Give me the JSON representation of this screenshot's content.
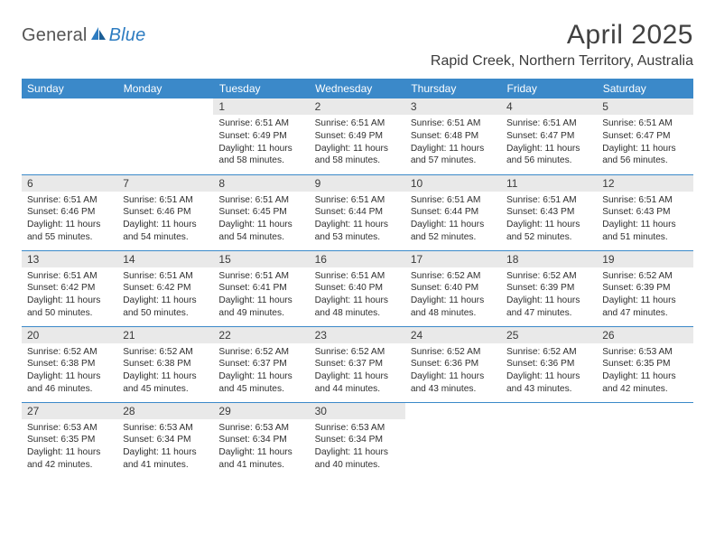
{
  "brand": {
    "part1": "General",
    "part2": "Blue"
  },
  "title": "April 2025",
  "location": "Rapid Creek, Northern Territory, Australia",
  "colors": {
    "header_bg": "#3b89c9",
    "header_text": "#ffffff",
    "daynum_band": "#e9e9e9",
    "rule": "#3b89c9",
    "text": "#333333"
  },
  "day_headers": [
    "Sunday",
    "Monday",
    "Tuesday",
    "Wednesday",
    "Thursday",
    "Friday",
    "Saturday"
  ],
  "weeks": [
    [
      {
        "empty": true
      },
      {
        "empty": true
      },
      {
        "n": "1",
        "sunrise": "6:51 AM",
        "sunset": "6:49 PM",
        "daylight": "11 hours and 58 minutes."
      },
      {
        "n": "2",
        "sunrise": "6:51 AM",
        "sunset": "6:49 PM",
        "daylight": "11 hours and 58 minutes."
      },
      {
        "n": "3",
        "sunrise": "6:51 AM",
        "sunset": "6:48 PM",
        "daylight": "11 hours and 57 minutes."
      },
      {
        "n": "4",
        "sunrise": "6:51 AM",
        "sunset": "6:47 PM",
        "daylight": "11 hours and 56 minutes."
      },
      {
        "n": "5",
        "sunrise": "6:51 AM",
        "sunset": "6:47 PM",
        "daylight": "11 hours and 56 minutes."
      }
    ],
    [
      {
        "n": "6",
        "sunrise": "6:51 AM",
        "sunset": "6:46 PM",
        "daylight": "11 hours and 55 minutes."
      },
      {
        "n": "7",
        "sunrise": "6:51 AM",
        "sunset": "6:46 PM",
        "daylight": "11 hours and 54 minutes."
      },
      {
        "n": "8",
        "sunrise": "6:51 AM",
        "sunset": "6:45 PM",
        "daylight": "11 hours and 54 minutes."
      },
      {
        "n": "9",
        "sunrise": "6:51 AM",
        "sunset": "6:44 PM",
        "daylight": "11 hours and 53 minutes."
      },
      {
        "n": "10",
        "sunrise": "6:51 AM",
        "sunset": "6:44 PM",
        "daylight": "11 hours and 52 minutes."
      },
      {
        "n": "11",
        "sunrise": "6:51 AM",
        "sunset": "6:43 PM",
        "daylight": "11 hours and 52 minutes."
      },
      {
        "n": "12",
        "sunrise": "6:51 AM",
        "sunset": "6:43 PM",
        "daylight": "11 hours and 51 minutes."
      }
    ],
    [
      {
        "n": "13",
        "sunrise": "6:51 AM",
        "sunset": "6:42 PM",
        "daylight": "11 hours and 50 minutes."
      },
      {
        "n": "14",
        "sunrise": "6:51 AM",
        "sunset": "6:42 PM",
        "daylight": "11 hours and 50 minutes."
      },
      {
        "n": "15",
        "sunrise": "6:51 AM",
        "sunset": "6:41 PM",
        "daylight": "11 hours and 49 minutes."
      },
      {
        "n": "16",
        "sunrise": "6:51 AM",
        "sunset": "6:40 PM",
        "daylight": "11 hours and 48 minutes."
      },
      {
        "n": "17",
        "sunrise": "6:52 AM",
        "sunset": "6:40 PM",
        "daylight": "11 hours and 48 minutes."
      },
      {
        "n": "18",
        "sunrise": "6:52 AM",
        "sunset": "6:39 PM",
        "daylight": "11 hours and 47 minutes."
      },
      {
        "n": "19",
        "sunrise": "6:52 AM",
        "sunset": "6:39 PM",
        "daylight": "11 hours and 47 minutes."
      }
    ],
    [
      {
        "n": "20",
        "sunrise": "6:52 AM",
        "sunset": "6:38 PM",
        "daylight": "11 hours and 46 minutes."
      },
      {
        "n": "21",
        "sunrise": "6:52 AM",
        "sunset": "6:38 PM",
        "daylight": "11 hours and 45 minutes."
      },
      {
        "n": "22",
        "sunrise": "6:52 AM",
        "sunset": "6:37 PM",
        "daylight": "11 hours and 45 minutes."
      },
      {
        "n": "23",
        "sunrise": "6:52 AM",
        "sunset": "6:37 PM",
        "daylight": "11 hours and 44 minutes."
      },
      {
        "n": "24",
        "sunrise": "6:52 AM",
        "sunset": "6:36 PM",
        "daylight": "11 hours and 43 minutes."
      },
      {
        "n": "25",
        "sunrise": "6:52 AM",
        "sunset": "6:36 PM",
        "daylight": "11 hours and 43 minutes."
      },
      {
        "n": "26",
        "sunrise": "6:53 AM",
        "sunset": "6:35 PM",
        "daylight": "11 hours and 42 minutes."
      }
    ],
    [
      {
        "n": "27",
        "sunrise": "6:53 AM",
        "sunset": "6:35 PM",
        "daylight": "11 hours and 42 minutes."
      },
      {
        "n": "28",
        "sunrise": "6:53 AM",
        "sunset": "6:34 PM",
        "daylight": "11 hours and 41 minutes."
      },
      {
        "n": "29",
        "sunrise": "6:53 AM",
        "sunset": "6:34 PM",
        "daylight": "11 hours and 41 minutes."
      },
      {
        "n": "30",
        "sunrise": "6:53 AM",
        "sunset": "6:34 PM",
        "daylight": "11 hours and 40 minutes."
      },
      {
        "empty": true
      },
      {
        "empty": true
      },
      {
        "empty": true
      }
    ]
  ],
  "labels": {
    "sunrise": "Sunrise:",
    "sunset": "Sunset:",
    "daylight": "Daylight:"
  }
}
